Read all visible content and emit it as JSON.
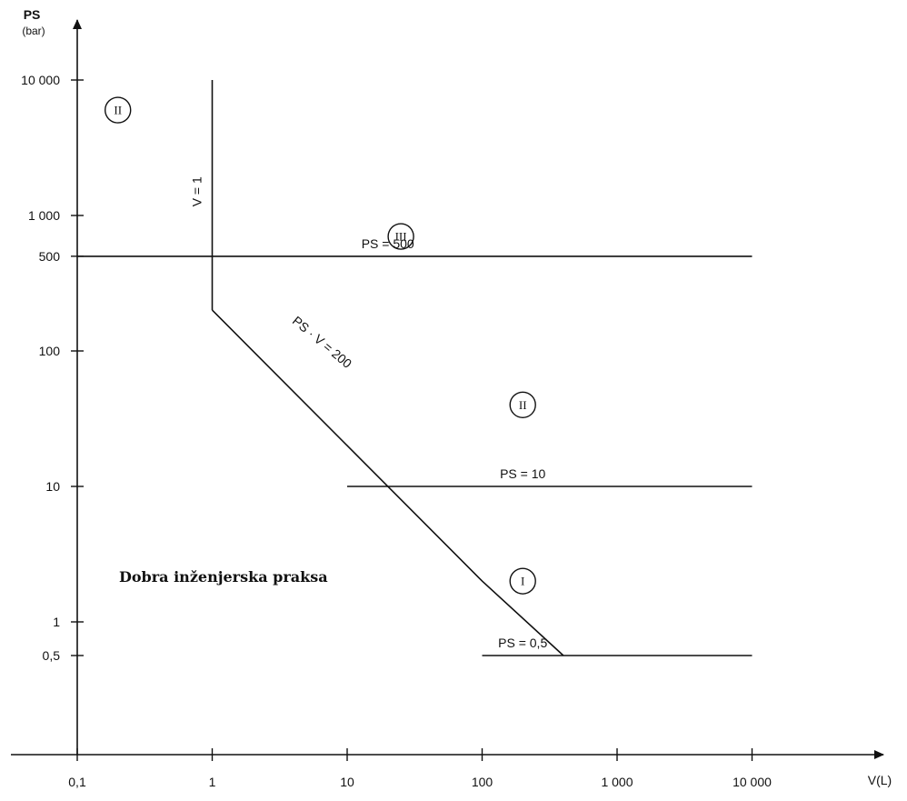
{
  "chart_data": {
    "type": "line",
    "scale": {
      "x": "log",
      "y": "log"
    },
    "xlim": [
      0.1,
      10000
    ],
    "ylim": [
      0.5,
      10000
    ],
    "xlabel": "V(L)",
    "ylabel": "PS (bar)",
    "ylabel_lines": [
      "PS",
      "(bar)"
    ],
    "x_ticks": [
      {
        "value": 0.1,
        "label": "0,1"
      },
      {
        "value": 1,
        "label": "1"
      },
      {
        "value": 10,
        "label": "10"
      },
      {
        "value": 100,
        "label": "100"
      },
      {
        "value": 1000,
        "label": "1 000"
      },
      {
        "value": 10000,
        "label": "10 000"
      }
    ],
    "y_ticks": [
      {
        "value": 0.5,
        "label": "0,5"
      },
      {
        "value": 1,
        "label": "1"
      },
      {
        "value": 10,
        "label": "10"
      },
      {
        "value": 100,
        "label": "100"
      },
      {
        "value": 500,
        "label": "500"
      },
      {
        "value": 1000,
        "label": "1 000"
      },
      {
        "value": 10000,
        "label": "10 000"
      }
    ],
    "series": [
      {
        "name": "PS = 500",
        "points": [
          [
            0.1,
            500
          ],
          [
            10000,
            500
          ]
        ]
      },
      {
        "name": "PS = 10",
        "points": [
          [
            10,
            10
          ],
          [
            10000,
            10
          ]
        ]
      },
      {
        "name": "PS = 0,5",
        "points": [
          [
            100,
            0.5
          ],
          [
            10000,
            0.5
          ]
        ]
      },
      {
        "name": "V = 1",
        "points": [
          [
            1,
            200
          ],
          [
            1,
            10000
          ]
        ]
      },
      {
        "name": "PS · V = 200",
        "points": [
          [
            1,
            200
          ],
          [
            10,
            20
          ],
          [
            100,
            2
          ],
          [
            400,
            0.5
          ]
        ]
      }
    ],
    "annotations": [
      {
        "id": "zone-II-top-left",
        "text": "II",
        "x": 0.2,
        "y": 6000
      },
      {
        "id": "zone-III",
        "text": "III",
        "x": 25,
        "y": 700
      },
      {
        "id": "zone-II-mid",
        "text": "II",
        "x": 200,
        "y": 40
      },
      {
        "id": "zone-I",
        "text": "I",
        "x": 200,
        "y": 2
      },
      {
        "id": "good-engineering-practice",
        "text": "Dobra inženjerska praksa",
        "x": 0.5,
        "y": 2
      }
    ],
    "line_labels": [
      {
        "id": "ps500",
        "text": "PS = 500",
        "x": 20,
        "y": 500
      },
      {
        "id": "ps10",
        "text": "PS = 10",
        "x": 200,
        "y": 10
      },
      {
        "id": "ps05",
        "text": "PS = 0,5",
        "x": 200,
        "y": 0.5
      },
      {
        "id": "v1",
        "text": "V = 1",
        "x": 1,
        "y": 1500
      },
      {
        "id": "psv200",
        "text": "PS · V = 200",
        "x": 5,
        "y": 100
      }
    ]
  }
}
